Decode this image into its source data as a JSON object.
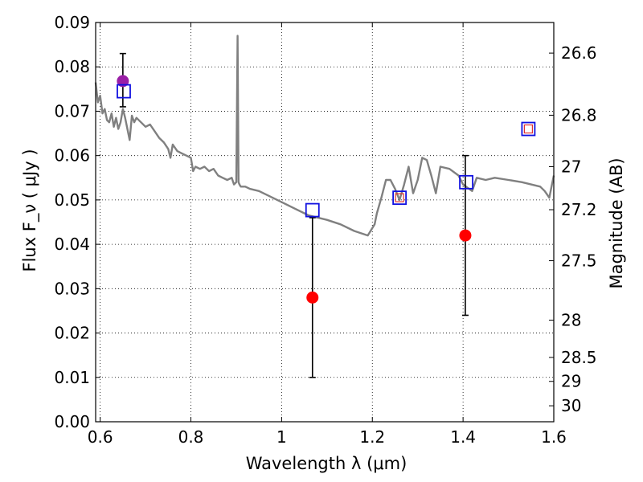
{
  "chart_data": {
    "type": "scatter",
    "xlabel": "Wavelength  λ (μm)",
    "ylabel": "Flux  F_ν  ( μJy )",
    "y2label": "Magnitude (AB)",
    "xlim": [
      0.59,
      1.6
    ],
    "ylim": [
      0.0,
      0.09
    ],
    "grid": true,
    "x_ticks": [
      0.6,
      0.8,
      1.0,
      1.2,
      1.4,
      1.6
    ],
    "x_tick_labels": [
      "0.6",
      "0.8",
      "1",
      "1.2",
      "1.4",
      "1.6"
    ],
    "y_ticks": [
      0.0,
      0.01,
      0.02,
      0.03,
      0.04,
      0.05,
      0.06,
      0.07,
      0.08,
      0.09
    ],
    "y_tick_labels": [
      "0.00",
      "0.01",
      "0.02",
      "0.03",
      "0.04",
      "0.05",
      "0.06",
      "0.07",
      "0.08",
      "0.09"
    ],
    "y2_ticks": [
      {
        "label": "26.6",
        "flux": 0.0831
      },
      {
        "label": "26.8",
        "flux": 0.0691
      },
      {
        "label": "27",
        "flux": 0.0575
      },
      {
        "label": "27.2",
        "flux": 0.0478
      },
      {
        "label": "27.5",
        "flux": 0.0363
      },
      {
        "label": "28",
        "flux": 0.0229
      },
      {
        "label": "28.5",
        "flux": 0.0145
      },
      {
        "label": "29",
        "flux": 0.0091
      },
      {
        "label": "30",
        "flux": 0.0036
      }
    ],
    "series": [
      {
        "type": "line",
        "color": "#808080",
        "x": [
          0.59,
          0.595,
          0.6,
          0.605,
          0.61,
          0.615,
          0.62,
          0.625,
          0.63,
          0.635,
          0.64,
          0.645,
          0.65,
          0.655,
          0.66,
          0.665,
          0.67,
          0.675,
          0.68,
          0.69,
          0.7,
          0.71,
          0.72,
          0.73,
          0.74,
          0.75,
          0.755,
          0.76,
          0.77,
          0.78,
          0.79,
          0.8,
          0.805,
          0.81,
          0.82,
          0.83,
          0.84,
          0.85,
          0.86,
          0.87,
          0.88,
          0.89,
          0.895,
          0.9,
          0.903,
          0.905,
          0.907,
          0.91,
          0.92,
          0.93,
          0.95,
          0.98,
          1.0,
          1.03,
          1.06,
          1.1,
          1.13,
          1.16,
          1.19,
          1.205,
          1.21,
          1.22,
          1.23,
          1.24,
          1.25,
          1.26,
          1.27,
          1.28,
          1.29,
          1.3,
          1.31,
          1.32,
          1.33,
          1.34,
          1.35,
          1.37,
          1.39,
          1.4,
          1.42,
          1.43,
          1.45,
          1.47,
          1.5,
          1.53,
          1.55,
          1.57,
          1.58,
          1.59,
          1.6
        ],
        "y": [
          0.0765,
          0.072,
          0.0735,
          0.0695,
          0.0705,
          0.068,
          0.0675,
          0.0695,
          0.0665,
          0.0685,
          0.066,
          0.0675,
          0.0705,
          0.0685,
          0.066,
          0.0635,
          0.069,
          0.0675,
          0.0685,
          0.0675,
          0.0665,
          0.067,
          0.0655,
          0.064,
          0.063,
          0.0615,
          0.0595,
          0.0625,
          0.061,
          0.0605,
          0.06,
          0.0595,
          0.0565,
          0.0575,
          0.057,
          0.0575,
          0.0565,
          0.057,
          0.0555,
          0.055,
          0.0545,
          0.055,
          0.0535,
          0.054,
          0.087,
          0.054,
          0.0535,
          0.053,
          0.053,
          0.0525,
          0.052,
          0.0505,
          0.0495,
          0.048,
          0.0465,
          0.0455,
          0.0445,
          0.043,
          0.042,
          0.0445,
          0.047,
          0.0505,
          0.0545,
          0.0545,
          0.0525,
          0.05,
          0.0535,
          0.0575,
          0.0515,
          0.0545,
          0.0595,
          0.059,
          0.0555,
          0.0515,
          0.0575,
          0.057,
          0.0555,
          0.0535,
          0.052,
          0.055,
          0.0545,
          0.055,
          0.0545,
          0.054,
          0.0535,
          0.053,
          0.052,
          0.0505,
          0.0555
        ]
      },
      {
        "type": "points",
        "marker": "circle",
        "color": "#ff0000",
        "points": [
          {
            "x": 1.068,
            "y": 0.028,
            "yerr_low": 0.01,
            "yerr_high": 0.046
          },
          {
            "x": 1.405,
            "y": 0.042,
            "yerr_low": 0.024,
            "yerr_high": 0.06
          }
        ]
      },
      {
        "type": "points",
        "marker": "circle",
        "color": "#9a1fa6",
        "points": [
          {
            "x": 0.65,
            "y": 0.0768,
            "yerr_low": 0.071,
            "yerr_high": 0.083
          }
        ]
      },
      {
        "type": "points",
        "marker": "square-open",
        "color": "#1010e0",
        "points": [
          {
            "x": 0.652,
            "y": 0.0745
          },
          {
            "x": 1.068,
            "y": 0.0477
          },
          {
            "x": 1.26,
            "y": 0.0505
          },
          {
            "x": 1.407,
            "y": 0.054
          },
          {
            "x": 1.544,
            "y": 0.066
          }
        ]
      },
      {
        "type": "points",
        "marker": "square-open-small",
        "color": "#e03030",
        "points": [
          {
            "x": 1.26,
            "y": 0.0505
          },
          {
            "x": 1.544,
            "y": 0.066
          }
        ]
      }
    ]
  }
}
